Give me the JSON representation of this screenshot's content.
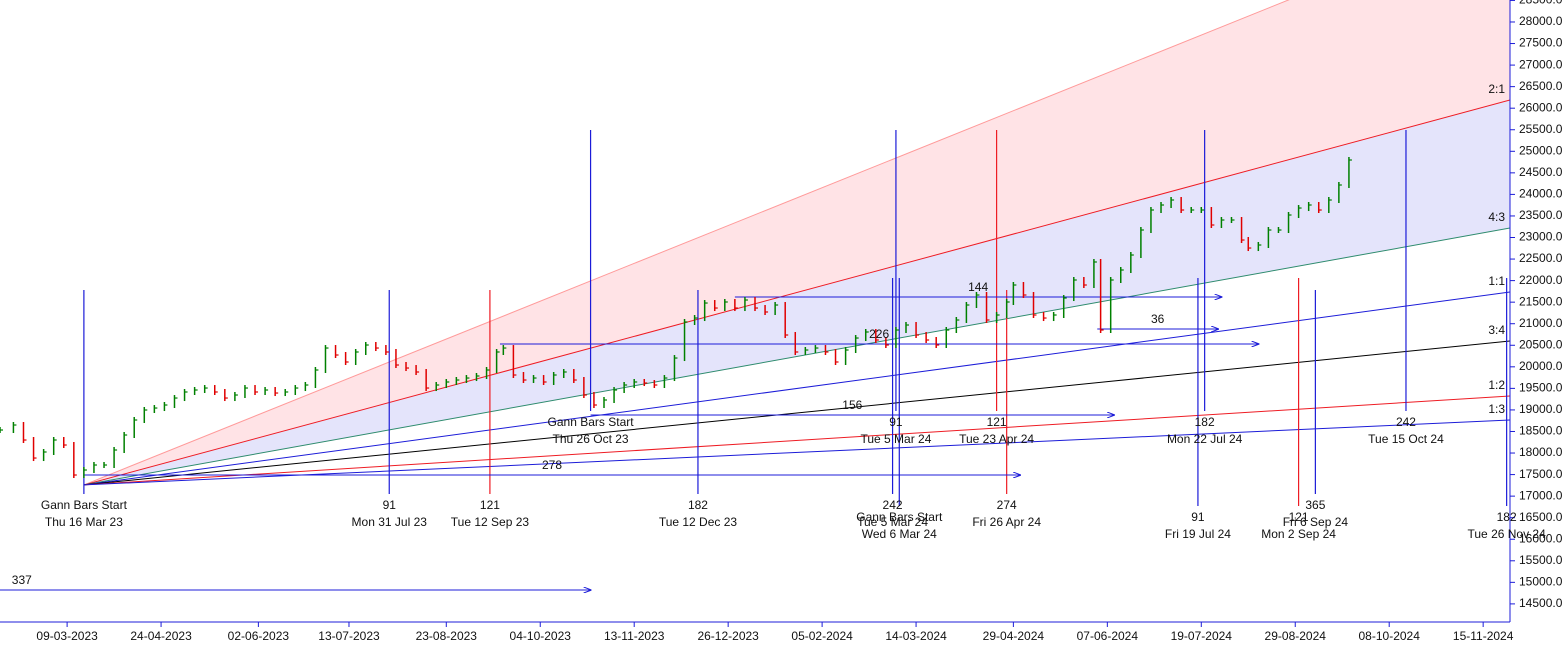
{
  "chart_data": {
    "type": "gann",
    "xlim": [
      0,
      450
    ],
    "ylim": [
      14080,
      28510
    ],
    "xticks": [
      {
        "value": 20,
        "label": "09-03-2023"
      },
      {
        "value": 48,
        "label": "24-04-2023"
      },
      {
        "value": 77,
        "label": "02-06-2023"
      },
      {
        "value": 104,
        "label": "13-07-2023"
      },
      {
        "value": 133,
        "label": "23-08-2023"
      },
      {
        "value": 161,
        "label": "04-10-2023"
      },
      {
        "value": 189,
        "label": "13-11-2023"
      },
      {
        "value": 217,
        "label": "26-12-2023"
      },
      {
        "value": 245,
        "label": "05-02-2024"
      },
      {
        "value": 273,
        "label": "14-03-2024"
      },
      {
        "value": 302,
        "label": "29-04-2024"
      },
      {
        "value": 330,
        "label": "07-06-2024"
      },
      {
        "value": 358,
        "label": "19-07-2024"
      },
      {
        "value": 386,
        "label": "29-08-2024"
      },
      {
        "value": 414,
        "label": "08-10-2024"
      },
      {
        "value": 442,
        "label": "15-11-2024"
      }
    ],
    "yticks": [
      {
        "value": 14500,
        "label": "14500.0"
      },
      {
        "value": 15000,
        "label": "15000.0"
      },
      {
        "value": 15500,
        "label": "15500.0"
      },
      {
        "value": 16000,
        "label": "16000.0"
      },
      {
        "value": 16500,
        "label": "16500.0"
      },
      {
        "value": 17000,
        "label": "17000.0"
      },
      {
        "value": 17500,
        "label": "17500.0"
      },
      {
        "value": 18000,
        "label": "18000.0"
      },
      {
        "value": 18500,
        "label": "18500.0"
      },
      {
        "value": 19000,
        "label": "19000.0"
      },
      {
        "value": 19500,
        "label": "19500.0"
      },
      {
        "value": 20000,
        "label": "20000.0"
      },
      {
        "value": 20500,
        "label": "20500.0"
      },
      {
        "value": 21000,
        "label": "21000.0"
      },
      {
        "value": 21500,
        "label": "21500.0"
      },
      {
        "value": 22000,
        "label": "22000.0"
      },
      {
        "value": 22500,
        "label": "22500.0"
      },
      {
        "value": 23000,
        "label": "23000.0"
      },
      {
        "value": 23500,
        "label": "23500.0"
      },
      {
        "value": 24000,
        "label": "24000.0"
      },
      {
        "value": 24500,
        "label": "24500.0"
      },
      {
        "value": 25000,
        "label": "25000.0"
      },
      {
        "value": 25500,
        "label": "25500.0"
      },
      {
        "value": 26000,
        "label": "26000.0"
      },
      {
        "value": 26500,
        "label": "26500.0"
      },
      {
        "value": 27000,
        "label": "27000.0"
      },
      {
        "value": 27500,
        "label": "27500.0"
      },
      {
        "value": 28000,
        "label": "28000.0"
      },
      {
        "value": 28500,
        "label": "28500.0"
      }
    ],
    "up_color": "#008000",
    "down_color": "#e00000",
    "price": {
      "x": [
        0,
        4,
        7,
        10,
        13,
        16,
        19,
        22,
        25,
        28,
        31,
        34,
        37,
        40,
        43,
        46,
        49,
        52,
        55,
        58,
        61,
        64,
        67,
        70,
        73,
        76,
        79,
        82,
        85,
        88,
        91,
        94,
        97,
        100,
        103,
        106,
        109,
        112,
        115,
        118,
        121,
        124,
        127,
        130,
        133,
        136,
        139,
        142,
        145,
        148,
        150,
        153,
        156,
        159,
        162,
        165,
        168,
        171,
        174,
        177,
        180,
        183,
        186,
        189,
        192,
        195,
        198,
        201,
        204,
        207,
        210,
        213,
        216,
        219,
        222,
        225,
        228,
        231,
        234,
        237,
        240,
        243,
        246,
        249,
        252,
        255,
        258,
        261,
        264,
        267,
        270,
        273,
        276,
        279,
        282,
        285,
        288,
        291,
        294,
        297,
        300,
        302,
        305,
        308,
        311,
        314,
        317,
        320,
        323,
        326,
        328,
        331,
        334,
        337,
        340,
        343,
        346,
        349,
        352,
        355,
        358,
        361,
        364,
        367,
        370,
        372,
        375,
        378,
        381,
        384,
        387,
        390,
        393,
        396,
        399,
        402
      ],
      "values": [
        18534,
        18650,
        18302,
        17884,
        18024,
        18302,
        18186,
        17490,
        17606,
        17722,
        17722,
        18070,
        18418,
        18766,
        18998,
        19044,
        19114,
        19276,
        19416,
        19462,
        19508,
        19416,
        19276,
        19346,
        19508,
        19416,
        19462,
        19392,
        19416,
        19508,
        19578,
        19926,
        20436,
        20274,
        20112,
        20344,
        20506,
        20436,
        20344,
        20042,
        19972,
        19880,
        19508,
        19578,
        19648,
        19694,
        19740,
        19787,
        19926,
        20344,
        20436,
        19810,
        19694,
        19740,
        19648,
        19810,
        19880,
        19694,
        19346,
        19114,
        19230,
        19462,
        19578,
        19648,
        19624,
        19578,
        19740,
        20204,
        21040,
        21132,
        21480,
        21364,
        21504,
        21364,
        21550,
        21364,
        21272,
        21434,
        20738,
        20344,
        20390,
        20436,
        20344,
        20112,
        20390,
        20668,
        20808,
        20622,
        20506,
        20854,
        20970,
        20738,
        20622,
        20506,
        20854,
        21086,
        21434,
        21666,
        21086,
        21202,
        21504,
        21898,
        21666,
        21202,
        21132,
        21202,
        21596,
        22014,
        21898,
        22432,
        20854,
        22014,
        22246,
        22594,
        23174,
        23638,
        23754,
        23870,
        23638,
        23638,
        23638,
        23290,
        23406,
        23406,
        22942,
        22756,
        22826,
        23174,
        23174,
        23522,
        23684,
        23754,
        23638,
        23870,
        24218,
        24798
      ]
    },
    "fan": {
      "origin_x": 25,
      "origin_y": 17260,
      "lines": [
        {
          "end": 30580,
          "color": "#ff9a9a",
          "fill": "#ffe3e6"
        },
        {
          "name": "2:1",
          "end": 26190,
          "color": "#ee1c24",
          "fill": "#e4e4fb"
        },
        {
          "name": "4:3",
          "end": 23220,
          "color": "#2e8b6e"
        },
        {
          "name": "1:1",
          "end": 21736,
          "color": "#1c1cd8"
        },
        {
          "name": "3:4",
          "end": 20599,
          "color": "#000000"
        },
        {
          "name": "1:2",
          "end": 19323,
          "color": "#ee1c24"
        },
        {
          "name": "1:3",
          "end": 18766,
          "color": "#1c1cd8"
        }
      ]
    },
    "verticals": [
      {
        "x": 25,
        "top": 21782,
        "bottom": 17049,
        "color": "#1c1cd8",
        "texts": [
          "Gann Bars Start",
          "Thu 16 Mar 23"
        ]
      },
      {
        "x": 116,
        "top": 21782,
        "bottom": 17049,
        "color": "#1c1cd8",
        "texts": [
          91,
          "Mon 31 Jul 23"
        ]
      },
      {
        "x": 146,
        "top": 21782,
        "bottom": 17049,
        "color": "#ee1c24",
        "texts": [
          121,
          "Tue 12 Sep 23"
        ]
      },
      {
        "x": 176,
        "top": 25494,
        "bottom": 18975,
        "color": "#1c1cd8",
        "texts": [
          "Gann Bars Start",
          "Thu 26 Oct 23"
        ]
      },
      {
        "x": 208,
        "top": 21782,
        "bottom": 17049,
        "color": "#1c1cd8",
        "texts": [
          182,
          "Tue 12 Dec 23"
        ]
      },
      {
        "x": 267,
        "top": 25494,
        "bottom": 18975,
        "color": "#1c1cd8",
        "texts": [
          91,
          "Tue 5 Mar 24"
        ]
      },
      {
        "x": 297,
        "top": 25494,
        "bottom": 18975,
        "color": "#ee1c24",
        "texts": [
          121,
          "Tue 23 Apr 24"
        ]
      },
      {
        "x": 359,
        "top": 25494,
        "bottom": 18975,
        "color": "#1c1cd8",
        "texts": [
          182,
          "Mon 22 Jul 24"
        ]
      },
      {
        "x": 419,
        "top": 25494,
        "bottom": 18975,
        "color": "#1c1cd8",
        "texts": [
          242,
          "Tue 15 Oct 24"
        ]
      },
      {
        "x": 266,
        "top": 22060,
        "bottom": 17049,
        "color": "#1c1cd8",
        "texts": [
          242,
          "Tue 5 Mar 24"
        ]
      },
      {
        "x": 268,
        "top": 22060,
        "bottom": 16771,
        "color": "#1c1cd8",
        "texts": [
          "Gann Bars Start",
          "Wed 6 Mar 24"
        ]
      },
      {
        "x": 300,
        "top": 21782,
        "bottom": 17049,
        "color": "#ee1c24",
        "texts": [
          274,
          "Fri 26 Apr 24"
        ]
      },
      {
        "x": 357,
        "top": 22060,
        "bottom": 16771,
        "color": "#1c1cd8",
        "texts": [
          91,
          "Fri 19 Jul 24"
        ]
      },
      {
        "x": 387,
        "top": 22060,
        "bottom": 16771,
        "color": "#ee1c24",
        "texts": [
          121,
          "Mon 2 Sep 24"
        ]
      },
      {
        "x": 392,
        "top": 21782,
        "bottom": 17049,
        "color": "#1c1cd8",
        "texts": [
          365,
          "Fri 6 Sep 24"
        ]
      },
      {
        "x": 449,
        "top": 22060,
        "bottom": 16771,
        "color": "#1c1cd8",
        "texts": [
          182,
          "Tue 26 Nov 24"
        ]
      }
    ],
    "arrows": [
      {
        "count": 337,
        "y": 14822,
        "x0": -163,
        "x1": 176,
        "color": "#1c1cd8"
      },
      {
        "count": 278,
        "y": 17490,
        "x0": 25,
        "x1": 304,
        "color": "#1c1cd8"
      },
      {
        "count": 156,
        "y": 18882,
        "x0": 176,
        "x1": 332,
        "color": "#1c1cd8"
      },
      {
        "count": 226,
        "y": 20529,
        "x0": 149,
        "x1": 375,
        "color": "#1c1cd8"
      },
      {
        "count": 144,
        "y": 21620,
        "x0": 219,
        "x1": 364,
        "color": "#1c1cd8"
      },
      {
        "count": 36,
        "y": 20877,
        "x0": 327,
        "x1": 363,
        "color": "#1c1cd8"
      }
    ]
  }
}
